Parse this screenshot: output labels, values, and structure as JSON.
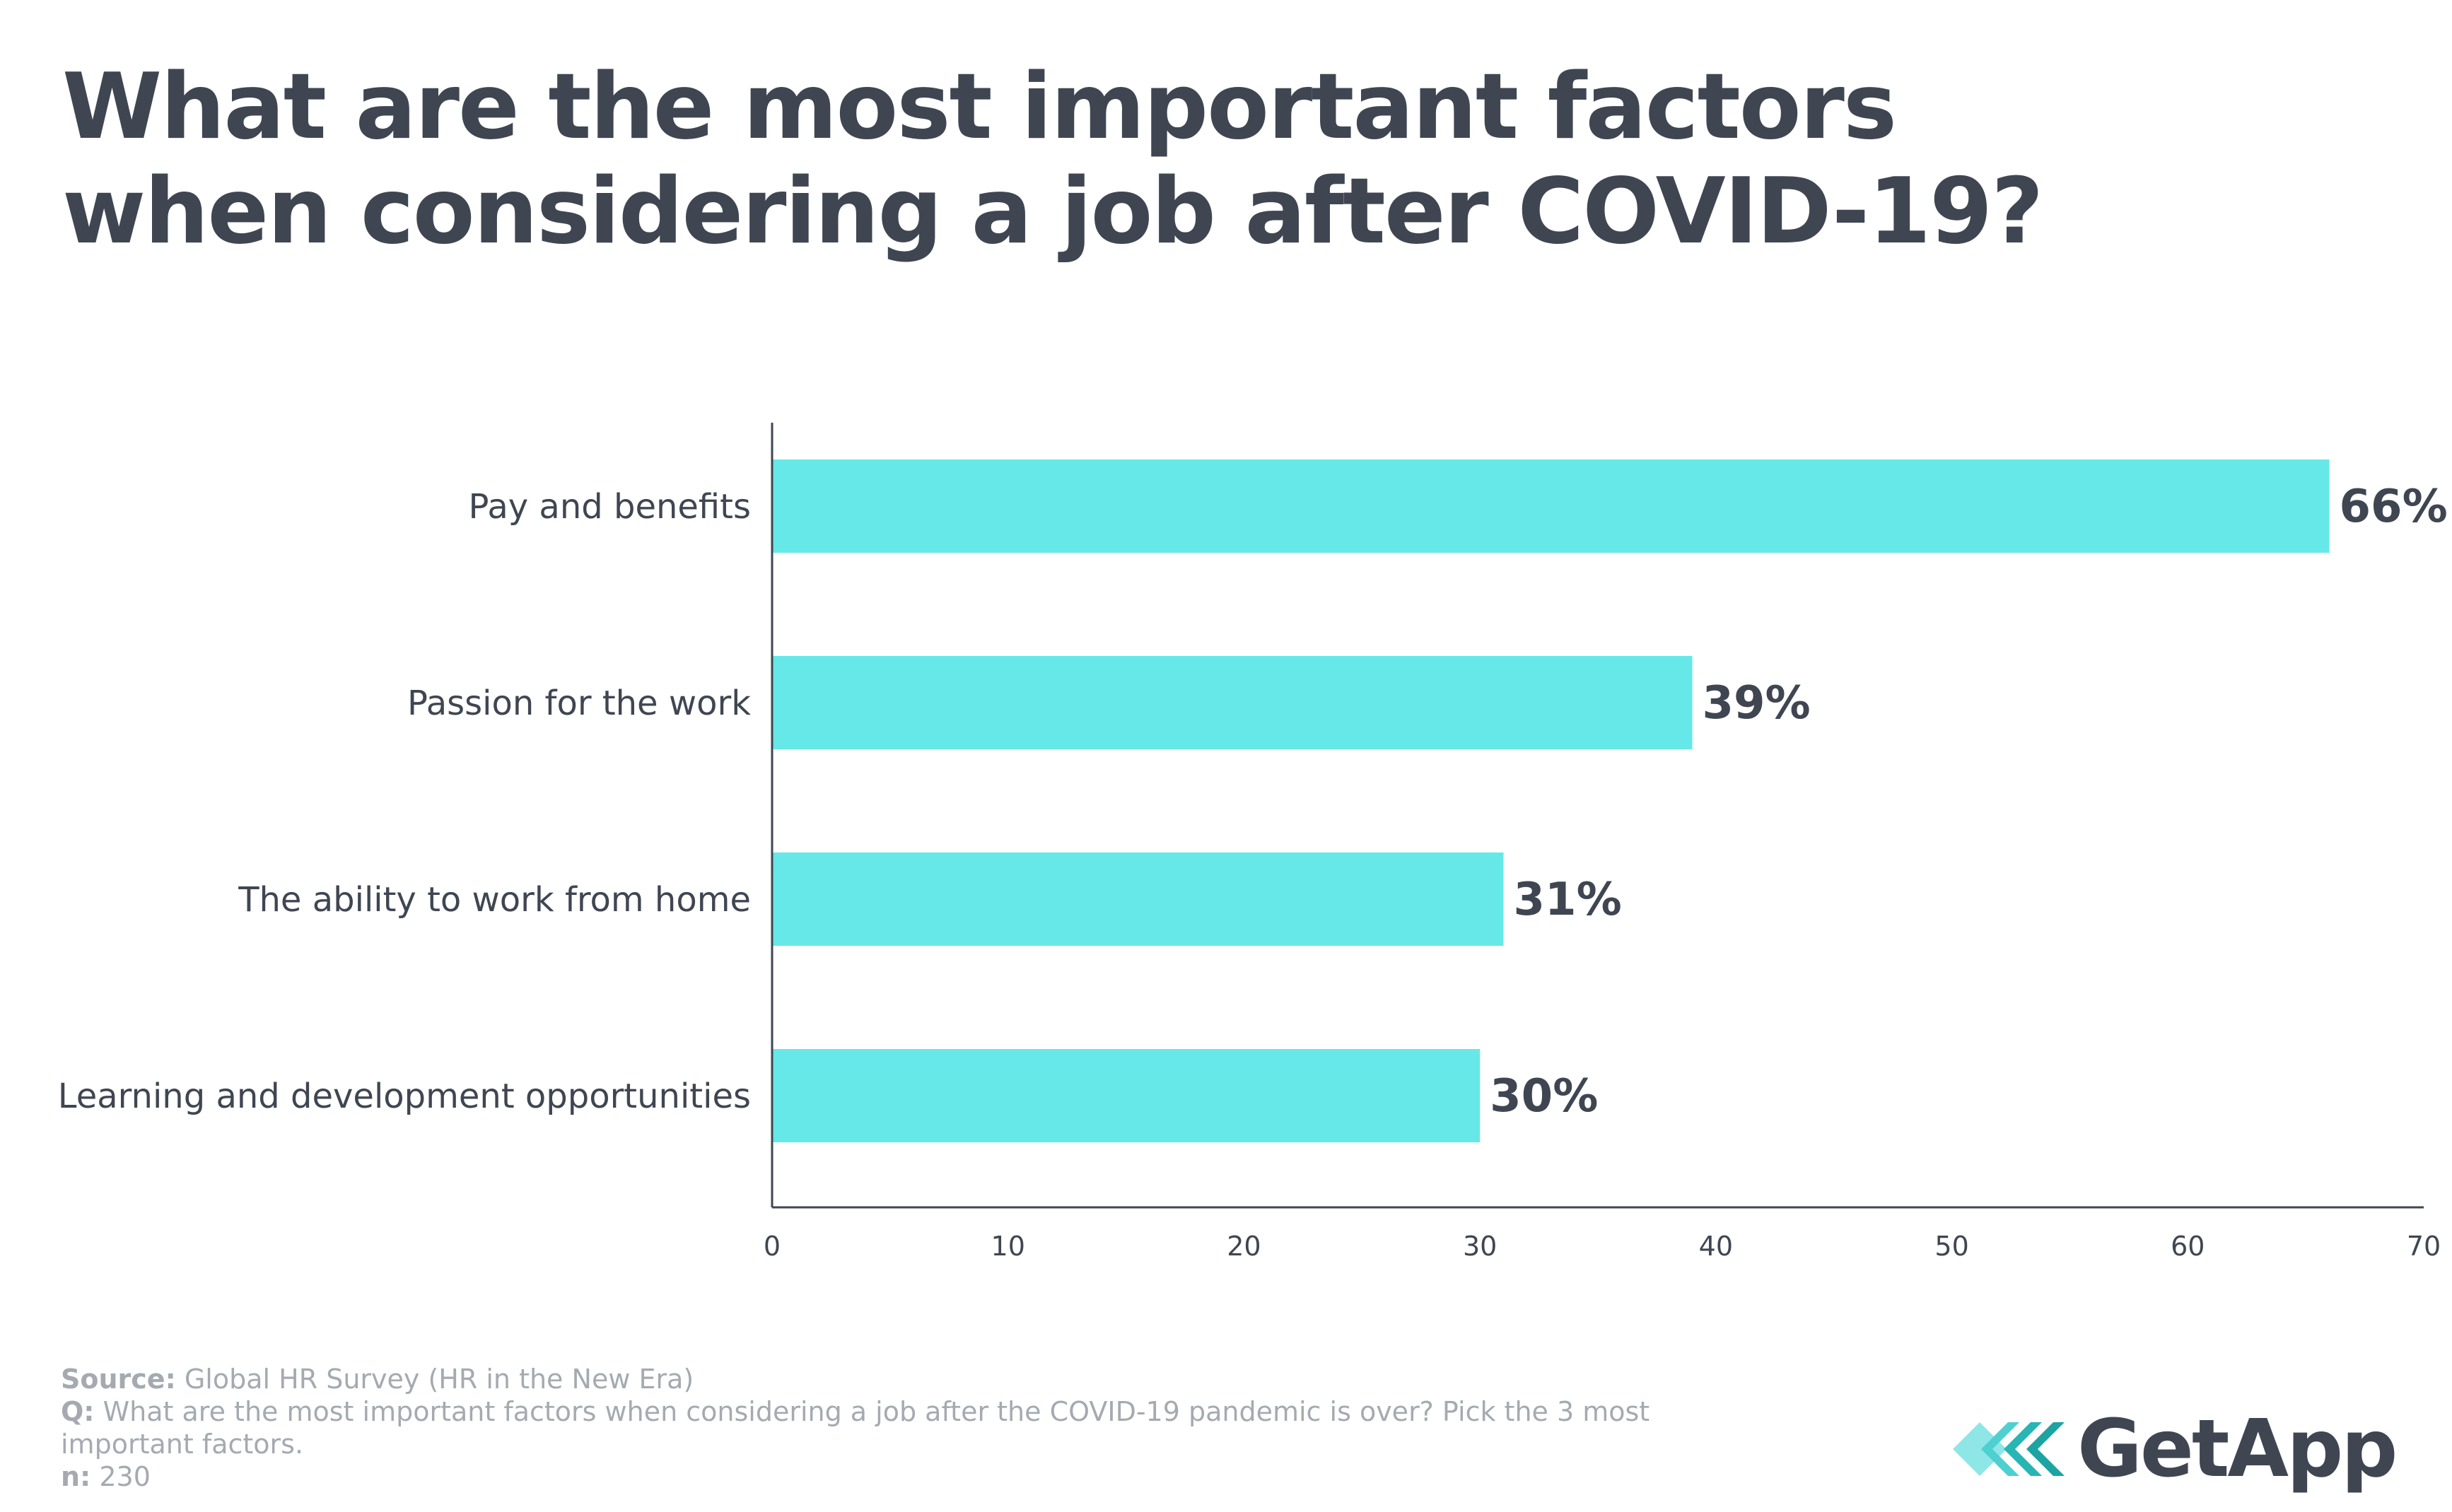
{
  "title_lines": [
    "What are the most important factors",
    "when considering a job after COVID-19?"
  ],
  "colors": {
    "bar": "#66e8e8",
    "text": "#3f4652",
    "axis": "#3f4652",
    "muted": "#a5aab1",
    "logo_teal_dark": "#27b5b5",
    "logo_teal_light": "#8fe6e6"
  },
  "chart_data": {
    "type": "bar",
    "orientation": "horizontal",
    "title": "What are the most important factors when considering a job after COVID-19?",
    "categories": [
      "Pay and benefits",
      "Passion for the work",
      "The ability to work from home",
      "Learning and development opportunities"
    ],
    "values": [
      66,
      39,
      31,
      30
    ],
    "value_labels": [
      "66%",
      "39%",
      "31%",
      "30%"
    ],
    "xlim": [
      0,
      70
    ],
    "xticks": [
      0,
      10,
      20,
      30,
      40,
      50,
      60,
      70
    ],
    "xlabel": "",
    "ylabel": "",
    "grid": false
  },
  "footer": {
    "source_label": "Source:",
    "source_text": "Global HR Survey (HR in the New Era)",
    "q_label": "Q:",
    "q_text": "What are the most important factors when considering a job after the COVID-19 pandemic is over? Pick the 3 most important factors.",
    "n_label": "n:",
    "n_text": "230"
  },
  "logo": {
    "text": "GetApp",
    "icon": "getapp-chevrons-icon"
  }
}
